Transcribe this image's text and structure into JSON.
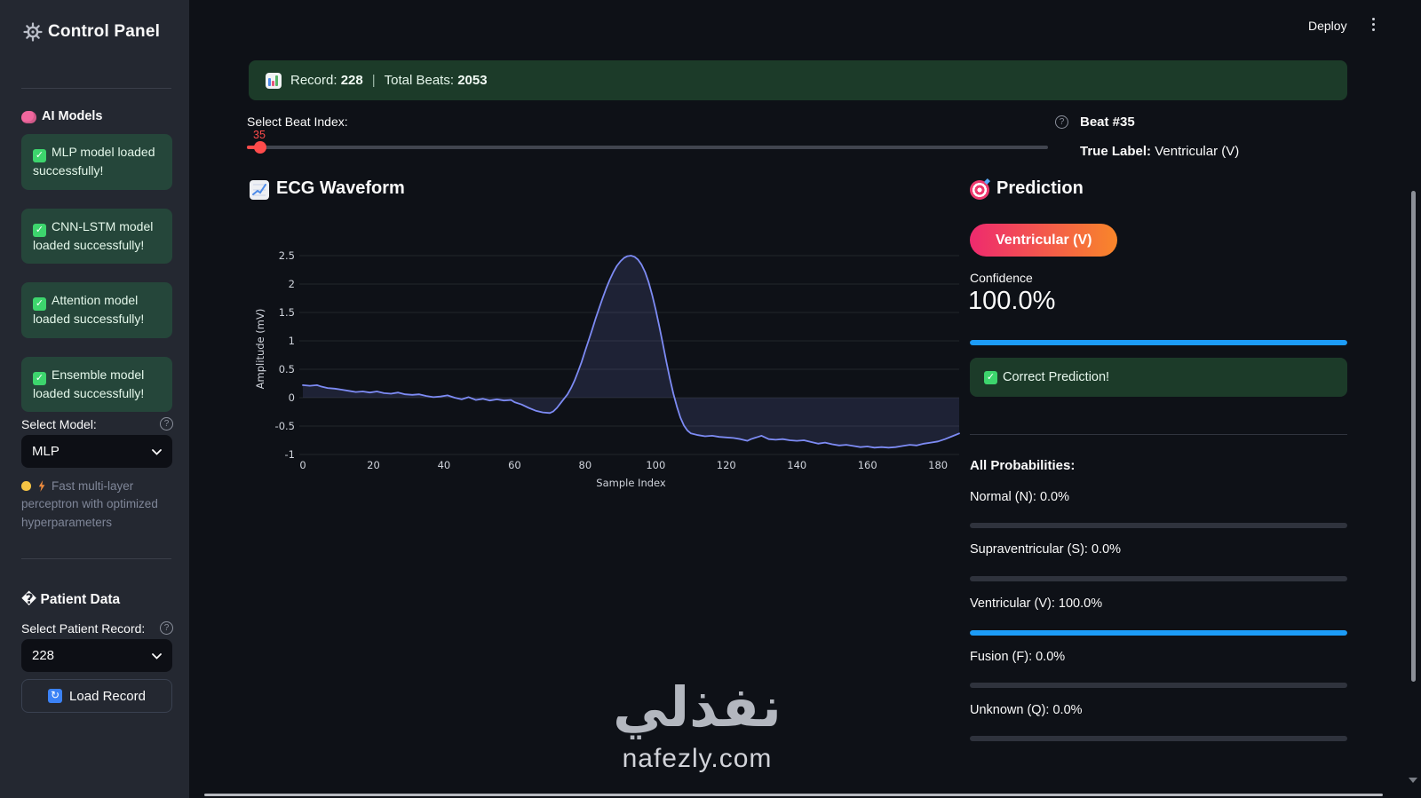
{
  "header": {
    "deploy_label": "Deploy"
  },
  "sidebar": {
    "title": "Control Panel",
    "models": {
      "label": "AI Models",
      "status_boxes": [
        "MLP model loaded successfully!",
        "CNN-LSTM model loaded successfully!",
        "Attention model loaded successfully!",
        "Ensemble model loaded successfully!"
      ],
      "select_model_label": "Select Model:",
      "select_model_value": "MLP",
      "caption": "Fast multi-layer perceptron with optimized hyperparameters"
    },
    "patient": {
      "label": "� Patient Data",
      "select_record_label": "Select Patient Record:",
      "select_record_value": "228",
      "load_button": "Load Record",
      "load_icon_glyph": "↻"
    },
    "help_glyph": "?"
  },
  "banner": {
    "record_label": "Record:",
    "record_value": "228",
    "separator": "|",
    "beats_label": "Total Beats:",
    "beats_value": "2053"
  },
  "beat_selector": {
    "label": "Select Beat Index:",
    "value": "35",
    "min": 0,
    "max": 2052
  },
  "beat_info": {
    "beat_title": "Beat #35",
    "true_label_prefix": "True Label:",
    "true_label_value": "Ventricular (V)"
  },
  "ecg": {
    "title": "ECG Waveform"
  },
  "prediction": {
    "title": "Prediction",
    "badge": "Ventricular (V)",
    "confidence_label": "Confidence",
    "confidence_value": "100.0%",
    "confidence_pct": 100,
    "success_message": "Correct Prediction!",
    "all_prob_label": "All Probabilities:",
    "probabilities": [
      {
        "label": "Normal (N):",
        "pct_text": "0.0%",
        "value": 0
      },
      {
        "label": "Supraventricular (S):",
        "pct_text": "0.0%",
        "value": 0
      },
      {
        "label": "Ventricular (V):",
        "pct_text": "100.0%",
        "value": 100
      },
      {
        "label": "Fusion (F):",
        "pct_text": "0.0%",
        "value": 0
      },
      {
        "label": "Unknown (Q):",
        "pct_text": "0.0%",
        "value": 0
      }
    ],
    "accent_blue": "#1c9cf7",
    "badge_gradient": [
      "#ee2a6e",
      "#f8862a"
    ]
  },
  "watermark": {
    "arabic": "نفذلي",
    "domain": "nafezly.com"
  },
  "chart_data": {
    "type": "area",
    "title": "",
    "xlabel": "Sample Index",
    "ylabel": "Amplitude (mV)",
    "x_ticks": [
      0,
      20,
      40,
      60,
      80,
      100,
      120,
      140,
      160,
      180
    ],
    "y_ticks": [
      -1,
      -0.5,
      0,
      0.5,
      1,
      1.5,
      2,
      2.5
    ],
    "xlim": [
      0,
      186
    ],
    "ylim": [
      -1.05,
      2.78
    ],
    "grid": "horizontal",
    "legend": "none",
    "line_color": "#7d8bf4",
    "fill_color": "rgba(125,139,244,0.14)",
    "points": [
      [
        0,
        0.22
      ],
      [
        2,
        0.21
      ],
      [
        4,
        0.22
      ],
      [
        5,
        0.2
      ],
      [
        7,
        0.17
      ],
      [
        9,
        0.16
      ],
      [
        11,
        0.14
      ],
      [
        13,
        0.12
      ],
      [
        15,
        0.1
      ],
      [
        17,
        0.11
      ],
      [
        19,
        0.09
      ],
      [
        21,
        0.11
      ],
      [
        23,
        0.08
      ],
      [
        25,
        0.07
      ],
      [
        27,
        0.09
      ],
      [
        29,
        0.06
      ],
      [
        31,
        0.05
      ],
      [
        33,
        0.06
      ],
      [
        35,
        0.03
      ],
      [
        37,
        0.01
      ],
      [
        39,
        0.02
      ],
      [
        41,
        0.04
      ],
      [
        43,
        0.0
      ],
      [
        45,
        -0.03
      ],
      [
        47,
        0.01
      ],
      [
        49,
        -0.04
      ],
      [
        51,
        -0.02
      ],
      [
        53,
        -0.05
      ],
      [
        55,
        -0.03
      ],
      [
        57,
        -0.05
      ],
      [
        59,
        -0.04
      ],
      [
        60,
        -0.08
      ],
      [
        62,
        -0.12
      ],
      [
        64,
        -0.18
      ],
      [
        66,
        -0.23
      ],
      [
        68,
        -0.26
      ],
      [
        70,
        -0.27
      ],
      [
        71,
        -0.24
      ],
      [
        72,
        -0.18
      ],
      [
        73,
        -0.1
      ],
      [
        74,
        -0.02
      ],
      [
        75,
        0.06
      ],
      [
        76,
        0.17
      ],
      [
        77,
        0.3
      ],
      [
        78,
        0.46
      ],
      [
        79,
        0.63
      ],
      [
        80,
        0.82
      ],
      [
        81,
        1.01
      ],
      [
        82,
        1.2
      ],
      [
        83,
        1.4
      ],
      [
        84,
        1.58
      ],
      [
        85,
        1.76
      ],
      [
        86,
        1.93
      ],
      [
        87,
        2.08
      ],
      [
        88,
        2.21
      ],
      [
        89,
        2.32
      ],
      [
        90,
        2.4
      ],
      [
        91,
        2.46
      ],
      [
        92,
        2.49
      ],
      [
        93,
        2.5
      ],
      [
        94,
        2.48
      ],
      [
        95,
        2.43
      ],
      [
        96,
        2.34
      ],
      [
        97,
        2.21
      ],
      [
        98,
        2.03
      ],
      [
        99,
        1.81
      ],
      [
        100,
        1.55
      ],
      [
        101,
        1.26
      ],
      [
        102,
        0.95
      ],
      [
        103,
        0.64
      ],
      [
        104,
        0.34
      ],
      [
        105,
        0.07
      ],
      [
        106,
        -0.16
      ],
      [
        107,
        -0.35
      ],
      [
        108,
        -0.49
      ],
      [
        109,
        -0.58
      ],
      [
        110,
        -0.63
      ],
      [
        112,
        -0.66
      ],
      [
        114,
        -0.68
      ],
      [
        116,
        -0.67
      ],
      [
        118,
        -0.69
      ],
      [
        120,
        -0.7
      ],
      [
        122,
        -0.71
      ],
      [
        124,
        -0.73
      ],
      [
        126,
        -0.76
      ],
      [
        127,
        -0.73
      ],
      [
        128,
        -0.71
      ],
      [
        129,
        -0.69
      ],
      [
        130,
        -0.67
      ],
      [
        131,
        -0.7
      ],
      [
        132,
        -0.73
      ],
      [
        134,
        -0.74
      ],
      [
        136,
        -0.73
      ],
      [
        138,
        -0.75
      ],
      [
        140,
        -0.76
      ],
      [
        142,
        -0.75
      ],
      [
        144,
        -0.78
      ],
      [
        146,
        -0.81
      ],
      [
        148,
        -0.79
      ],
      [
        150,
        -0.82
      ],
      [
        152,
        -0.84
      ],
      [
        154,
        -0.83
      ],
      [
        156,
        -0.85
      ],
      [
        158,
        -0.87
      ],
      [
        160,
        -0.86
      ],
      [
        162,
        -0.88
      ],
      [
        164,
        -0.87
      ],
      [
        166,
        -0.88
      ],
      [
        168,
        -0.87
      ],
      [
        170,
        -0.85
      ],
      [
        172,
        -0.83
      ],
      [
        174,
        -0.84
      ],
      [
        176,
        -0.81
      ],
      [
        178,
        -0.79
      ],
      [
        180,
        -0.77
      ],
      [
        182,
        -0.73
      ],
      [
        184,
        -0.68
      ],
      [
        186,
        -0.63
      ]
    ]
  }
}
